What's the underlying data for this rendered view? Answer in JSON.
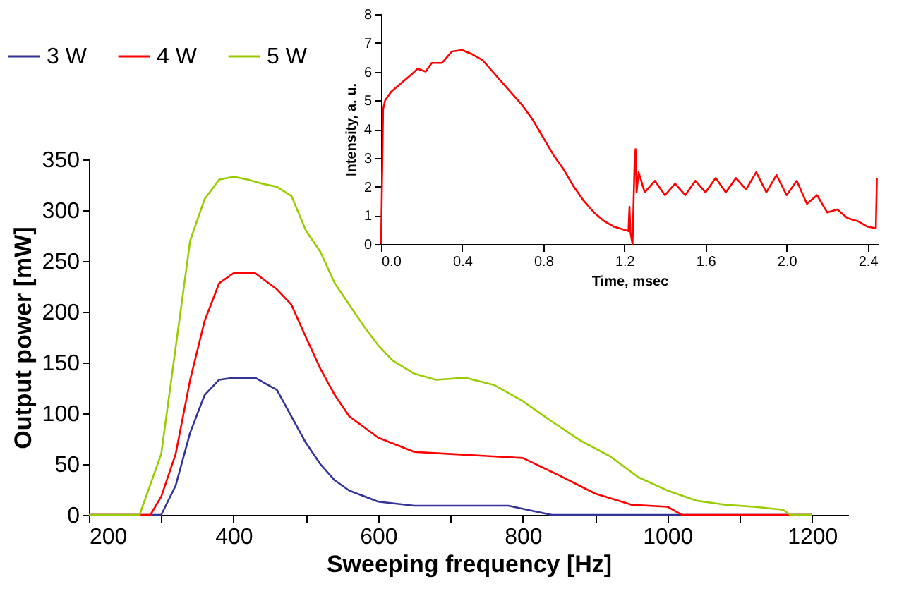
{
  "chart_data": [
    {
      "type": "line",
      "xlabel": "Sweeping frequency [Hz]",
      "ylabel": "Output power [mW]",
      "xlim": [
        200,
        1250
      ],
      "xticks": [
        200,
        {
          "value": 300,
          "label": null
        },
        400,
        {
          "value": 500,
          "label": null
        },
        600,
        {
          "value": 700,
          "label": null
        },
        800,
        {
          "value": 900,
          "label": null
        },
        1000,
        {
          "value": 1100,
          "label": null
        },
        1200
      ],
      "ylim": [
        0,
        350
      ],
      "yticks": [
        0,
        50,
        100,
        150,
        200,
        250,
        300,
        350
      ],
      "grid": false,
      "legend": "top left",
      "line_style": "solid",
      "marker": "none",
      "series": [
        {
          "name": "3 W",
          "color": "#333399",
          "x": [
            200,
            300,
            320,
            340,
            360,
            380,
            400,
            430,
            460,
            480,
            500,
            520,
            540,
            560,
            600,
            650,
            780,
            820,
            840,
            1200
          ],
          "values": [
            0,
            0,
            29,
            81,
            118,
            133,
            135,
            135,
            123,
            97,
            71,
            50,
            34,
            24,
            13,
            9,
            9,
            3,
            0,
            0
          ]
        },
        {
          "name": "4 W",
          "color": "#ff0000",
          "x": [
            200,
            285,
            300,
            320,
            340,
            360,
            380,
            400,
            430,
            460,
            480,
            500,
            520,
            540,
            560,
            600,
            650,
            700,
            750,
            800,
            850,
            900,
            950,
            1000,
            1020,
            1200
          ],
          "values": [
            0,
            0,
            18,
            60,
            133,
            191,
            228,
            238,
            238,
            222,
            207,
            175,
            144,
            118,
            97,
            76,
            62,
            60,
            58,
            56,
            39,
            21,
            10,
            8,
            0,
            0
          ]
        },
        {
          "name": "5 W",
          "color": "#99cc00",
          "x": [
            200,
            270,
            300,
            320,
            340,
            360,
            380,
            400,
            420,
            440,
            460,
            480,
            500,
            520,
            540,
            560,
            580,
            600,
            620,
            650,
            680,
            720,
            760,
            800,
            840,
            880,
            920,
            960,
            1000,
            1040,
            1080,
            1120,
            1160,
            1170,
            1200
          ],
          "values": [
            0,
            0,
            60,
            165,
            270,
            311,
            330,
            333,
            330,
            326,
            323,
            314,
            280,
            259,
            228,
            207,
            186,
            167,
            152,
            139,
            133,
            135,
            128,
            112,
            92,
            73,
            58,
            37,
            24,
            14,
            10,
            8,
            5,
            0,
            0
          ]
        }
      ]
    },
    {
      "type": "line",
      "xlabel": "Time, msec",
      "ylabel": "Intensity, a. u.",
      "xlim": [
        0,
        2.45
      ],
      "xticks": [
        {
          "value": 0,
          "label": "0.0"
        },
        0.4,
        0.8,
        1.2,
        1.6,
        {
          "value": 2,
          "label": "2.0"
        },
        2.4
      ],
      "ylim": [
        0,
        8
      ],
      "yticks": [
        0,
        1,
        2,
        3,
        4,
        5,
        6,
        7,
        8
      ],
      "grid": false,
      "legend": false,
      "line_style": "solid",
      "marker": "none",
      "series": [
        {
          "color": "#ff0000",
          "x": [
            0,
            0.01,
            0.02,
            0.05,
            0.1,
            0.15,
            0.18,
            0.22,
            0.25,
            0.3,
            0.35,
            0.4,
            0.45,
            0.5,
            0.55,
            0.6,
            0.65,
            0.7,
            0.75,
            0.8,
            0.85,
            0.9,
            0.95,
            1.0,
            1.05,
            1.1,
            1.15,
            1.2,
            1.22,
            1.225,
            1.23,
            1.24,
            1.25,
            1.255,
            1.26,
            1.27,
            1.3,
            1.35,
            1.4,
            1.45,
            1.5,
            1.55,
            1.6,
            1.65,
            1.7,
            1.75,
            1.8,
            1.85,
            1.9,
            1.95,
            2.0,
            2.05,
            2.1,
            2.15,
            2.2,
            2.25,
            2.3,
            2.35,
            2.4,
            2.44,
            2.445
          ],
          "values": [
            0,
            4.7,
            5.0,
            5.3,
            5.6,
            5.9,
            6.1,
            6.0,
            6.3,
            6.3,
            6.7,
            6.75,
            6.6,
            6.4,
            6.0,
            5.6,
            5.2,
            4.8,
            4.3,
            3.7,
            3.1,
            2.6,
            2.0,
            1.5,
            1.1,
            0.8,
            0.6,
            0.5,
            0.45,
            1.3,
            0.4,
            0.0,
            2.8,
            3.3,
            1.8,
            2.5,
            1.8,
            2.2,
            1.7,
            2.1,
            1.7,
            2.2,
            1.8,
            2.3,
            1.8,
            2.3,
            1.9,
            2.5,
            1.8,
            2.4,
            1.7,
            2.2,
            1.4,
            1.7,
            1.1,
            1.2,
            0.9,
            0.8,
            0.6,
            0.55,
            2.3
          ]
        }
      ]
    }
  ]
}
